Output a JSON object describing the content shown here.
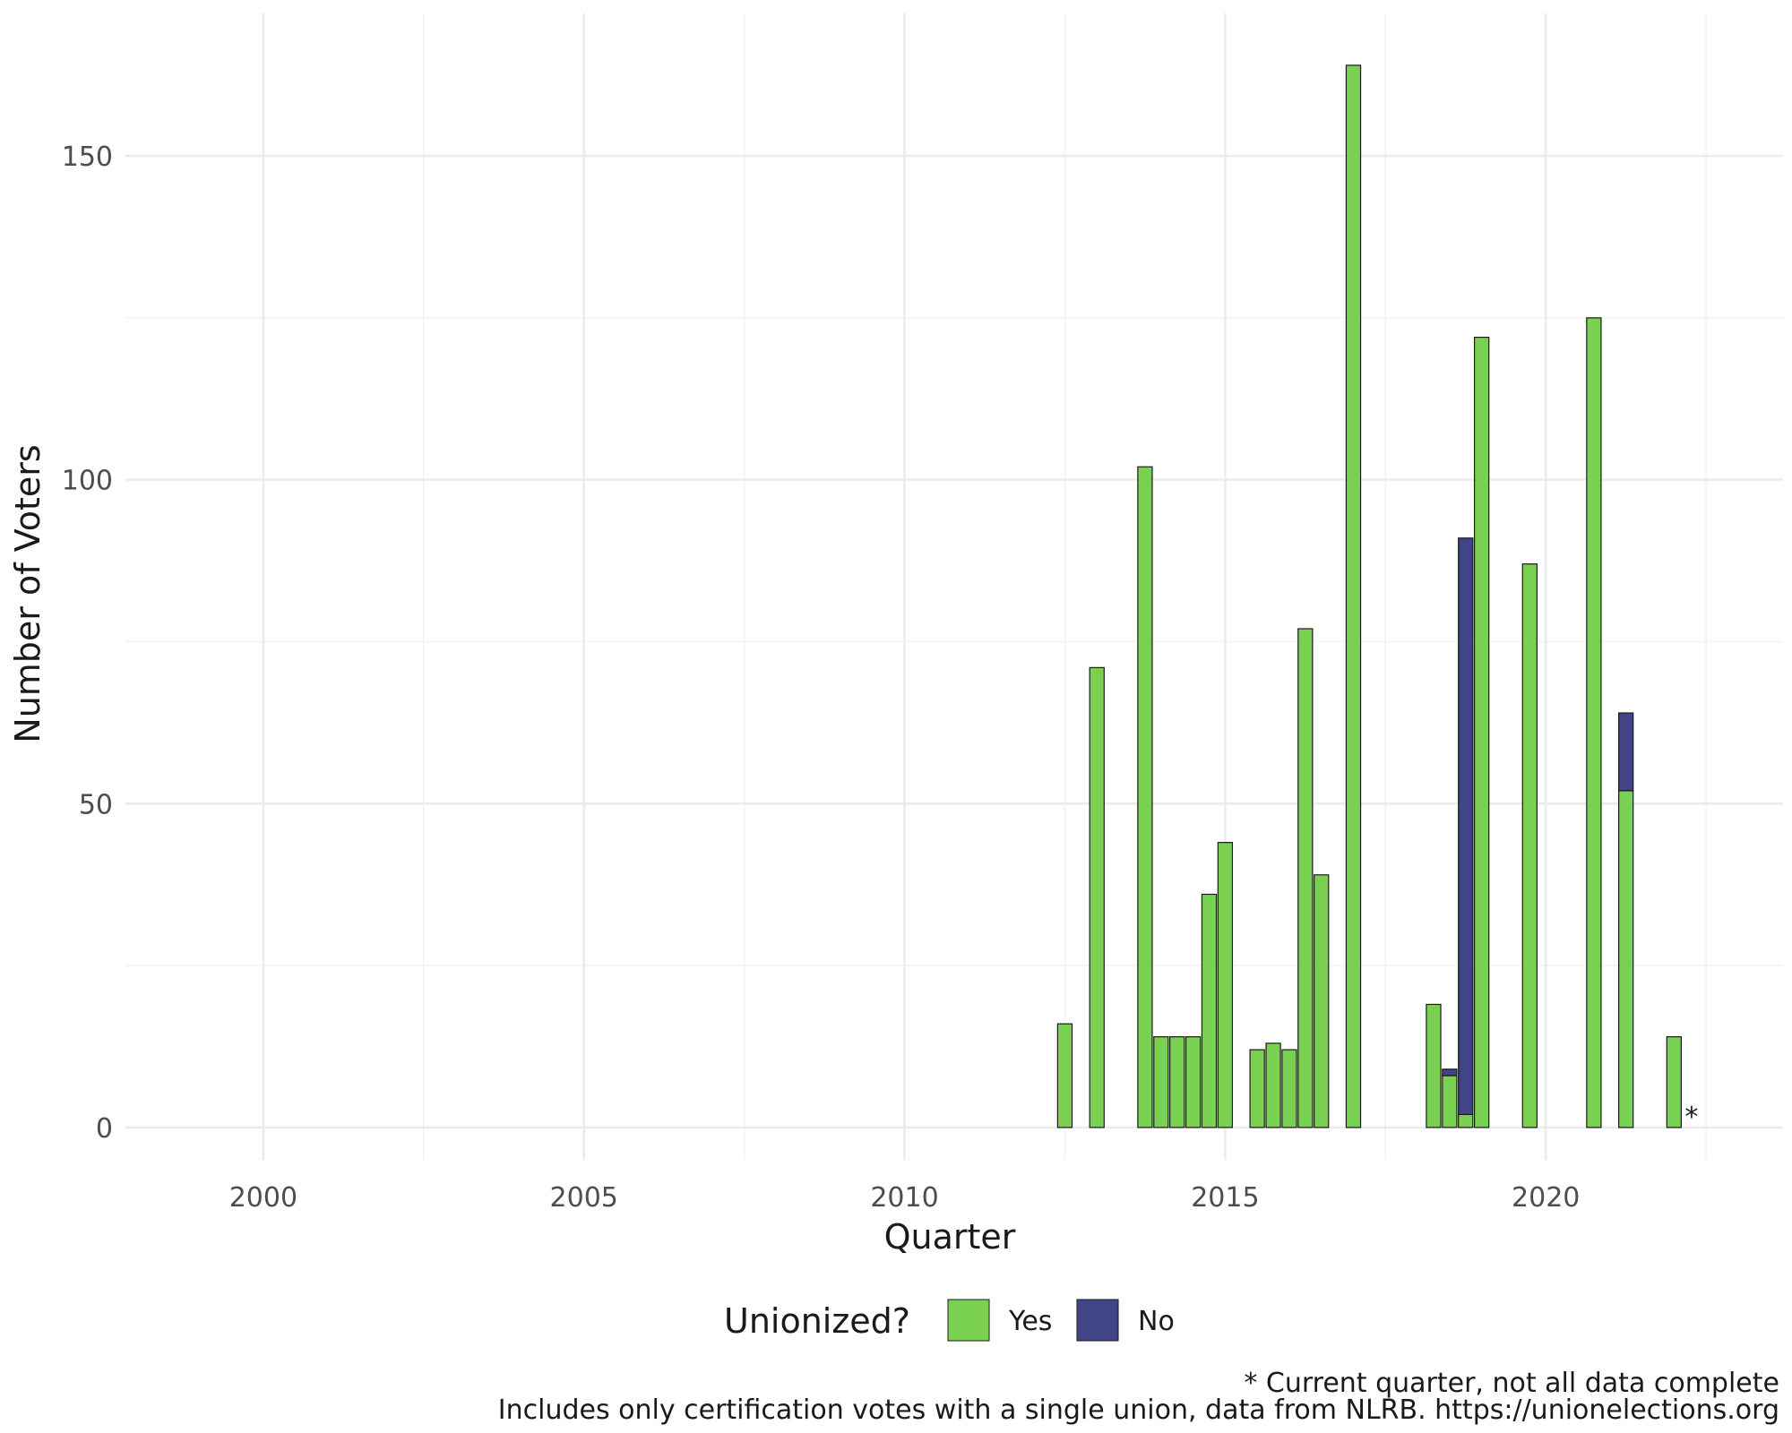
{
  "chart_data": {
    "type": "bar",
    "stacked": true,
    "xlabel": "Quarter",
    "ylabel": "Number of Voters",
    "xlim": [
      1997.85,
      2023.7
    ],
    "ylim": [
      -5,
      172
    ],
    "x_ticks": [
      2000,
      2005,
      2010,
      2015,
      2020
    ],
    "x_tick_labels": [
      "2000",
      "2005",
      "2010",
      "2015",
      "2020"
    ],
    "y_ticks": [
      0,
      50,
      100,
      150
    ],
    "y_tick_labels": [
      "0",
      "50",
      "100",
      "150"
    ],
    "grid": true,
    "legend": {
      "title": "Unionized?",
      "position": "bottom",
      "entries": [
        {
          "label": "Yes",
          "color": "#7ad151"
        },
        {
          "label": "No",
          "color": "#414487"
        }
      ]
    },
    "bar_outline_color": "#1a1a1a",
    "x": [
      2012.5,
      2013.0,
      2013.75,
      2014.0,
      2014.25,
      2014.5,
      2014.75,
      2015.0,
      2015.5,
      2015.75,
      2016.0,
      2016.25,
      2016.5,
      2017.0,
      2018.25,
      2018.5,
      2018.75,
      2019.0,
      2019.75,
      2020.75,
      2021.25,
      2022.0
    ],
    "series": [
      {
        "name": "Yes",
        "values": [
          16,
          71,
          102,
          14,
          14,
          14,
          36,
          44,
          12,
          13,
          12,
          77,
          39,
          164,
          19,
          8,
          2,
          122,
          87,
          125,
          52,
          14
        ]
      },
      {
        "name": "No",
        "values": [
          0,
          0,
          0,
          0,
          0,
          0,
          0,
          0,
          0,
          0,
          0,
          0,
          0,
          0,
          0,
          1,
          89,
          0,
          0,
          0,
          12,
          0
        ]
      }
    ],
    "annotations": [
      {
        "text": "*",
        "x": 2022.0
      }
    ],
    "caption_lines": [
      "* Current quarter, not all data complete",
      "Includes only certification votes with a single union, data from NLRB. https://unionelections.org"
    ]
  }
}
